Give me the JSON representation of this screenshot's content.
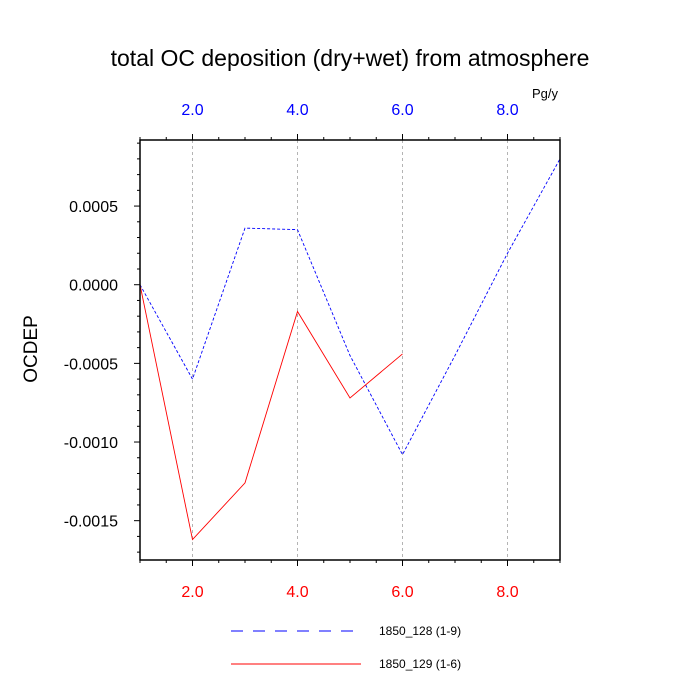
{
  "chart_data": {
    "type": "line",
    "title": "total OC deposition (dry+wet) from atmosphere",
    "ylabel": "OCDEP",
    "top_axis_unit": "Pg/y",
    "xlim": [
      1,
      9
    ],
    "ylim": [
      -0.00175,
      0.00092
    ],
    "yticks": [
      0.0005,
      0.0,
      -0.0005,
      -0.001,
      -0.0015
    ],
    "ytick_labels": [
      "0.0005",
      "0.0000",
      "-0.0005",
      "-0.0010",
      "-0.0015"
    ],
    "xticks": [
      2,
      4,
      6,
      8
    ],
    "xtick_labels_bottom": [
      "2.0",
      "4.0",
      "6.0",
      "8.0"
    ],
    "xtick_labels_top": [
      "2.0",
      "4.0",
      "6.0",
      "8.0"
    ],
    "grid": "vertical dashed at major x ticks",
    "legend_position": "bottom",
    "series": [
      {
        "name": "1850_128 (1-9)",
        "color": "#0000ff",
        "dash": "dashed",
        "x": [
          1,
          2,
          3,
          4,
          5,
          6,
          7,
          8,
          9
        ],
        "y": [
          0.0,
          -0.0006,
          0.00036,
          0.00035,
          -0.00045,
          -0.00108,
          -0.00045,
          0.0002,
          0.0008
        ]
      },
      {
        "name": "1850_129 (1-6)",
        "color": "#ff0000",
        "dash": "solid",
        "x": [
          1,
          2,
          3,
          4,
          5,
          6
        ],
        "y": [
          0.0,
          -0.00162,
          -0.00126,
          -0.00017,
          -0.00072,
          -0.00044
        ]
      }
    ]
  }
}
